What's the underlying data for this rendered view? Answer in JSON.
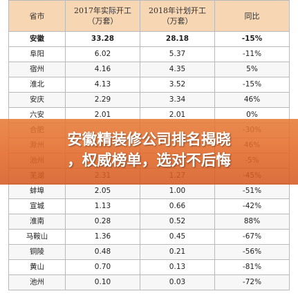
{
  "table": {
    "headers": [
      {
        "line1": "省市",
        "line2": ""
      },
      {
        "line1": "2017年实际开工",
        "line2": "（万套）"
      },
      {
        "line1": "2018年计划开工",
        "line2": "（万套）"
      },
      {
        "line1": "同比",
        "line2": ""
      }
    ],
    "rows": [
      [
        "安徽",
        "33.28",
        "28.18",
        "-15%"
      ],
      [
        "阜阳",
        "6.02",
        "5.37",
        "-11%"
      ],
      [
        "宿州",
        "4.16",
        "4.35",
        "5%"
      ],
      [
        "淮北",
        "4.13",
        "3.52",
        "-15%"
      ],
      [
        "安庆",
        "2.29",
        "3.34",
        "46%"
      ],
      [
        "六安",
        "2.01",
        "2.01",
        "0%"
      ],
      [
        "合肥",
        "",
        "",
        "-30%"
      ],
      [
        "滁州",
        "2.89",
        "",
        "46%"
      ],
      [
        "池州",
        "",
        "",
        "-5%"
      ],
      [
        "芜湖",
        "2.31",
        "1.27",
        "-45%"
      ],
      [
        "蚌埠",
        "2.05",
        "1.00",
        "-51%"
      ],
      [
        "宣城",
        "1.13",
        "0.66",
        "-42%"
      ],
      [
        "淮南",
        "0.28",
        "0.52",
        "88%"
      ],
      [
        "马鞍山",
        "1.36",
        "0.45",
        "-67%"
      ],
      [
        "铜陵",
        "0.48",
        "0.21",
        "-56%"
      ],
      [
        "黄山",
        "0.70",
        "0.13",
        "-81%"
      ],
      [
        "池州",
        "0.10",
        "0.03",
        "-72%"
      ]
    ]
  },
  "banner": {
    "line1": "安徽精装修公司排名揭晓",
    "line2": "，权威榜单，选对不后悔"
  },
  "colors": {
    "header_bg": "#f6d6b3",
    "banner": "#e2682a"
  }
}
